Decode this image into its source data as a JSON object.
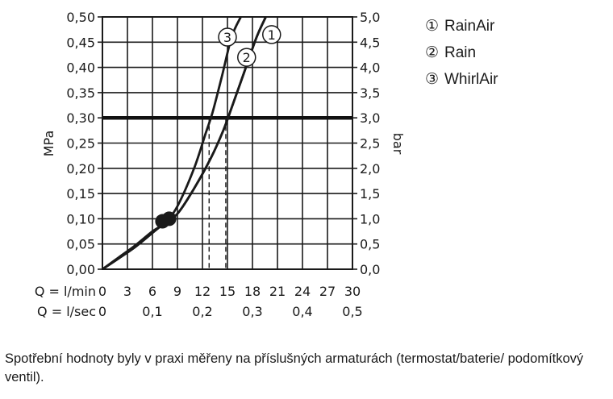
{
  "chart_data": {
    "type": "line",
    "title": "",
    "ylabel_left": "MPa",
    "ylabel_right": "bar",
    "x_axis_flow_lmin": {
      "label": "Q = l/min",
      "ticks": [
        "0",
        "3",
        "6",
        "9",
        "12",
        "15",
        "18",
        "21",
        "24",
        "27",
        "30"
      ],
      "range": [
        0,
        30
      ]
    },
    "x_axis_flow_lsec": {
      "label": "Q = l/sec",
      "ticks": [
        "0",
        "0,1",
        "0,2",
        "0,3",
        "0,4",
        "0,5"
      ],
      "values": [
        0,
        0.1,
        0.2,
        0.3,
        0.4,
        0.5
      ]
    },
    "y_axis_left": {
      "ticks": [
        "0,00",
        "0,05",
        "0,10",
        "0,15",
        "0,20",
        "0,25",
        "0,30",
        "0,35",
        "0,40",
        "0,45",
        "0,50"
      ],
      "range": [
        0,
        0.5
      ]
    },
    "y_axis_right": {
      "ticks": [
        "0,0",
        "0,5",
        "1,0",
        "1,5",
        "2,0",
        "2,5",
        "3,0",
        "3,5",
        "4,0",
        "4,5",
        "5,0"
      ],
      "range": [
        0,
        5
      ]
    },
    "grid": true,
    "reference_line": {
      "pressure_mpa": 0.3,
      "label": "3,0 bar"
    },
    "series": [
      {
        "id": "1",
        "name": "RainAir",
        "points": [
          [
            0,
            0
          ],
          [
            2,
            0.022
          ],
          [
            4,
            0.045
          ],
          [
            6,
            0.072
          ],
          [
            7.2,
            0.088
          ],
          [
            9,
            0.11
          ],
          [
            11,
            0.16
          ],
          [
            13,
            0.22
          ],
          [
            14.5,
            0.275
          ],
          [
            15.5,
            0.32
          ],
          [
            17,
            0.39
          ],
          [
            18.5,
            0.46
          ],
          [
            19.6,
            0.5
          ]
        ]
      },
      {
        "id": "2",
        "name": "Rain",
        "points": [
          [
            0,
            0
          ],
          [
            2,
            0.022
          ],
          [
            4,
            0.045
          ],
          [
            6,
            0.072
          ],
          [
            7.2,
            0.088
          ],
          [
            9,
            0.11
          ],
          [
            11,
            0.16
          ],
          [
            13,
            0.22
          ],
          [
            14.5,
            0.275
          ],
          [
            15.5,
            0.32
          ],
          [
            17,
            0.39
          ],
          [
            18.5,
            0.46
          ],
          [
            19.6,
            0.5
          ]
        ]
      },
      {
        "id": "3",
        "name": "WhirlAir",
        "points": [
          [
            0,
            0
          ],
          [
            2,
            0.024
          ],
          [
            4,
            0.048
          ],
          [
            6,
            0.075
          ],
          [
            7.5,
            0.092
          ],
          [
            9,
            0.125
          ],
          [
            11,
            0.2
          ],
          [
            12.4,
            0.27
          ],
          [
            13.2,
            0.31
          ],
          [
            14.3,
            0.38
          ],
          [
            15.5,
            0.46
          ],
          [
            16.6,
            0.5
          ]
        ]
      }
    ],
    "markers": [
      {
        "q_lmin": 7.2,
        "pressure_mpa": 0.095
      },
      {
        "q_lmin": 8.0,
        "pressure_mpa": 0.1
      }
    ],
    "projections": [
      {
        "q_lmin": 12.8,
        "pressure_mpa": 0.3
      },
      {
        "q_lmin": 14.8,
        "pressure_mpa": 0.3
      }
    ],
    "curve_labels": [
      {
        "text": "1",
        "q_lmin": 20.3,
        "pressure_mpa": 0.465
      },
      {
        "text": "2",
        "q_lmin": 17.3,
        "pressure_mpa": 0.42
      },
      {
        "text": "3",
        "q_lmin": 15.0,
        "pressure_mpa": 0.46
      }
    ],
    "legend": [
      {
        "symbol": "①",
        "name": "RainAir"
      },
      {
        "symbol": "②",
        "name": "Rain"
      },
      {
        "symbol": "③",
        "name": "WhirlAir"
      }
    ],
    "legend_placement": "right"
  },
  "note": "Spotřební hodnoty byly v praxi měřeny na příslušných armaturách (termostat/baterie/ podomítkový ventil)."
}
